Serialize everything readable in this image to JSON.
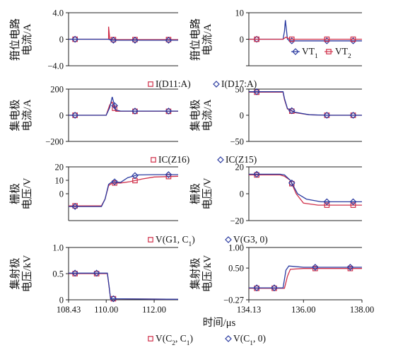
{
  "figure": {
    "xlabel": "时间/μs",
    "bottom_legend": [
      {
        "label": "V(C",
        "sub": "2",
        "label2": ", C",
        "sub2": "1",
        "label3": ")",
        "marker": "square",
        "color": "#d0304a"
      },
      {
        "label": "V(C",
        "sub": "1",
        "label2": ", 0)",
        "sub2": "",
        "label3": "",
        "marker": "diamond",
        "color": "#2a3aa0"
      }
    ]
  },
  "chart_data": [
    {
      "type": "line",
      "id": "c1",
      "ylabel": [
        "箝位电路",
        "电流/A"
      ],
      "xlim": [
        108.43,
        113.0
      ],
      "ylim": [
        -4.0,
        4.0
      ],
      "yticks": [
        {
          "v": 4.0,
          "t": "4.0"
        },
        {
          "v": 0,
          "t": "0"
        },
        {
          "v": -4.0,
          "t": "−4.0"
        }
      ],
      "series": [
        {
          "name": "I(D11:A)",
          "color": "#d0304a",
          "marker": "square",
          "x": [
            108.43,
            110.05,
            110.1,
            110.1,
            110.15,
            110.3,
            113.0
          ],
          "y": [
            0,
            0,
            0,
            1.9,
            0,
            -0.05,
            -0.05
          ]
        },
        {
          "name": "I(D17:A)",
          "color": "#2a3aa0",
          "marker": "diamond",
          "x": [
            108.43,
            110.1,
            110.2,
            113.0
          ],
          "y": [
            0,
            0,
            -0.15,
            -0.15
          ]
        }
      ],
      "markers_x": [
        108.7,
        110.3,
        111.2,
        112.6
      ],
      "legend": [
        {
          "label": "I(D11:A)",
          "marker": "square",
          "color": "#d0304a"
        },
        {
          "label": "I(D17:A)",
          "marker": "diamond",
          "color": "#2a3aa0"
        }
      ]
    },
    {
      "type": "line",
      "id": "c2",
      "ylabel": [
        "箝位电路",
        "电流/A"
      ],
      "xlim": [
        134.13,
        138.0
      ],
      "ylim": [
        -10,
        10
      ],
      "yticks": [
        {
          "v": 10,
          "t": "10"
        },
        {
          "v": 0,
          "t": "0"
        },
        {
          "v": -10,
          "t": ""
        }
      ],
      "series": [
        {
          "name": "VT1",
          "color": "#2a3aa0",
          "marker": "diamond",
          "x": [
            134.13,
            135.3,
            135.35,
            135.38,
            135.45,
            135.55,
            138.0
          ],
          "y": [
            0,
            0,
            3,
            7.2,
            0,
            -0.6,
            -0.6
          ]
        },
        {
          "name": "VT2",
          "color": "#d0304a",
          "marker": "square",
          "x": [
            134.13,
            135.3,
            135.4,
            135.55,
            138.0
          ],
          "y": [
            0,
            0,
            0.8,
            0,
            0
          ]
        }
      ],
      "markers_x": [
        134.4,
        135.6,
        136.8,
        137.7
      ],
      "legend": [
        {
          "label": "VT",
          "sub": "1",
          "marker": "diamond",
          "color": "#2a3aa0"
        },
        {
          "label": "VT",
          "sub": "2",
          "marker": "square",
          "color": "#d0304a"
        }
      ]
    },
    {
      "type": "line",
      "id": "c3",
      "ylabel": [
        "集电极",
        "电流/A"
      ],
      "xlim": [
        108.43,
        113.0
      ],
      "ylim": [
        -200,
        200
      ],
      "yticks": [
        {
          "v": 200,
          "t": "200"
        },
        {
          "v": 0,
          "t": "0"
        },
        {
          "v": -200,
          "t": "−200"
        }
      ],
      "series": [
        {
          "name": "IC(Z16)",
          "color": "#d0304a",
          "marker": "square",
          "x": [
            108.43,
            110.0,
            110.15,
            110.25,
            110.4,
            110.6,
            113.0
          ],
          "y": [
            0,
            0,
            80,
            100,
            30,
            30,
            30
          ]
        },
        {
          "name": "IC(Z15)",
          "color": "#2a3aa0",
          "marker": "diamond",
          "x": [
            108.43,
            110.0,
            110.15,
            110.25,
            110.4,
            110.6,
            113.0
          ],
          "y": [
            0,
            0,
            60,
            140,
            40,
            32,
            32
          ]
        }
      ],
      "markers_x": [
        108.7,
        110.35,
        111.2,
        112.6
      ],
      "legend": [
        {
          "label": "IC(Z16)",
          "marker": "square",
          "color": "#d0304a"
        },
        {
          "label": "IC(Z15)",
          "marker": "diamond",
          "color": "#2a3aa0"
        }
      ]
    },
    {
      "type": "line",
      "id": "c4",
      "ylabel": [
        "集电极",
        "电流/A"
      ],
      "xlim": [
        134.13,
        138.0
      ],
      "ylim": [
        -50,
        50
      ],
      "yticks": [
        {
          "v": 50,
          "t": "50"
        },
        {
          "v": 0,
          "t": "0"
        },
        {
          "v": -50,
          "t": "−50"
        }
      ],
      "series": [
        {
          "name": "IC(Z16)",
          "color": "#d0304a",
          "marker": "square",
          "x": [
            134.13,
            135.3,
            135.35,
            135.45,
            135.7,
            136.2,
            136.8,
            138.0
          ],
          "y": [
            44,
            44,
            30,
            12,
            5,
            1,
            0,
            0
          ]
        },
        {
          "name": "IC(Z15)",
          "color": "#2a3aa0",
          "marker": "diamond",
          "x": [
            134.13,
            135.3,
            135.35,
            135.45,
            135.7,
            136.2,
            136.8,
            138.0
          ],
          "y": [
            45,
            45,
            32,
            13,
            6,
            1,
            0,
            0
          ]
        }
      ],
      "markers_x": [
        134.4,
        135.6,
        136.8,
        137.7
      ],
      "legend": []
    },
    {
      "type": "line",
      "id": "c5",
      "ylabel": [
        "栅极",
        "电压/V"
      ],
      "xlim": [
        108.43,
        113.0
      ],
      "ylim": [
        -20,
        20
      ],
      "yticks": [
        {
          "v": 20,
          "t": "20"
        },
        {
          "v": 10,
          "t": "10"
        },
        {
          "v": 0,
          "t": "0"
        }
      ],
      "series": [
        {
          "name": "V(G1, C1)",
          "color": "#d0304a",
          "marker": "square",
          "x": [
            108.43,
            109.8,
            109.95,
            110.1,
            110.25,
            110.6,
            111.0,
            111.5,
            112.0,
            113.0
          ],
          "y": [
            -9,
            -9,
            -4,
            6,
            8,
            8,
            9,
            11,
            12.5,
            13
          ]
        },
        {
          "name": "V(G3, 0)",
          "color": "#2a3aa0",
          "marker": "diamond",
          "x": [
            108.43,
            109.8,
            109.95,
            110.1,
            110.25,
            110.6,
            110.9,
            111.3,
            112.0,
            113.0
          ],
          "y": [
            -9.5,
            -9.5,
            -4,
            7,
            9,
            8.5,
            12,
            14,
            14.2,
            14.2
          ]
        }
      ],
      "markers_x": [
        108.7,
        110.35,
        111.2,
        112.6
      ],
      "legend": [
        {
          "label": "V(G1, C",
          "sub": "1",
          "label2": ")",
          "marker": "square",
          "color": "#d0304a"
        },
        {
          "label": "V(G3, 0)",
          "marker": "diamond",
          "color": "#2a3aa0"
        }
      ]
    },
    {
      "type": "line",
      "id": "c6",
      "ylabel": [
        "栅极",
        "电压/V"
      ],
      "xlim": [
        134.13,
        138.0
      ],
      "ylim": [
        -20,
        20
      ],
      "yticks": [
        {
          "v": 20,
          "t": "20"
        },
        {
          "v": 0,
          "t": "0"
        },
        {
          "v": -20,
          "t": "−20"
        }
      ],
      "series": [
        {
          "name": "V(G1, C1)",
          "color": "#d0304a",
          "marker": "square",
          "x": [
            134.13,
            135.2,
            135.35,
            135.55,
            135.75,
            136.0,
            136.5,
            138.0
          ],
          "y": [
            14,
            14,
            13,
            10,
            0,
            -7,
            -8.5,
            -8.5
          ]
        },
        {
          "name": "V(G3, 0)",
          "color": "#2a3aa0",
          "marker": "diamond",
          "x": [
            134.13,
            135.2,
            135.35,
            135.55,
            135.8,
            136.1,
            136.6,
            138.0
          ],
          "y": [
            14.5,
            14.5,
            14,
            10,
            0,
            -4,
            -6,
            -6
          ]
        }
      ],
      "markers_x": [
        134.4,
        135.6,
        136.8,
        137.7
      ],
      "legend": []
    },
    {
      "type": "line",
      "id": "c7",
      "ylabel": [
        "集射极",
        "电压/kV"
      ],
      "xlim": [
        108.43,
        113.0
      ],
      "ylim": [
        0,
        1.0
      ],
      "yticks": [
        {
          "v": 1.0,
          "t": "1.0"
        },
        {
          "v": 0.5,
          "t": "0.5"
        },
        {
          "v": 0,
          "t": "0"
        }
      ],
      "xticks": [
        {
          "v": 108.43,
          "t": "108.43"
        },
        {
          "v": 110.0,
          "t": "110.00"
        },
        {
          "v": 112.0,
          "t": "112.00"
        }
      ],
      "series": [
        {
          "name": "V(C2, C1)",
          "color": "#d0304a",
          "marker": "square",
          "x": [
            108.43,
            110.05,
            110.12,
            110.18,
            113.0
          ],
          "y": [
            0.5,
            0.5,
            0.25,
            0.02,
            0.01
          ]
        },
        {
          "name": "V(C1, 0)",
          "color": "#2a3aa0",
          "marker": "diamond",
          "x": [
            108.43,
            110.05,
            110.12,
            110.18,
            113.0
          ],
          "y": [
            0.51,
            0.51,
            0.26,
            0.02,
            0.01
          ]
        }
      ],
      "markers_x": [
        108.7,
        109.6,
        110.3
      ],
      "legend": []
    },
    {
      "type": "line",
      "id": "c8",
      "ylabel": [
        "集射极",
        "电压/kV"
      ],
      "xlim": [
        134.13,
        138.0
      ],
      "ylim": [
        -0.27,
        1.0
      ],
      "yticks": [
        {
          "v": 1.0,
          "t": "1.00"
        },
        {
          "v": 0.5,
          "t": "0.50"
        },
        {
          "v": -0.27,
          "t": "−0.27"
        }
      ],
      "xticks": [
        {
          "v": 134.13,
          "t": "134.13"
        },
        {
          "v": 136.0,
          "t": "136.00"
        },
        {
          "v": 138.0,
          "t": "138.00"
        }
      ],
      "series": [
        {
          "name": "V(C2, C1)",
          "color": "#d0304a",
          "marker": "square",
          "x": [
            134.13,
            135.35,
            135.45,
            135.55,
            136.0,
            138.0
          ],
          "y": [
            0.01,
            0.01,
            0.3,
            0.47,
            0.49,
            0.49
          ]
        },
        {
          "name": "V(C1, 0)",
          "color": "#2a3aa0",
          "marker": "diamond",
          "x": [
            134.13,
            135.3,
            135.4,
            135.5,
            136.0,
            138.0
          ],
          "y": [
            0.02,
            0.02,
            0.45,
            0.55,
            0.52,
            0.52
          ]
        }
      ],
      "markers_x": [
        134.4,
        135.0,
        136.4,
        137.6
      ],
      "legend": []
    }
  ]
}
